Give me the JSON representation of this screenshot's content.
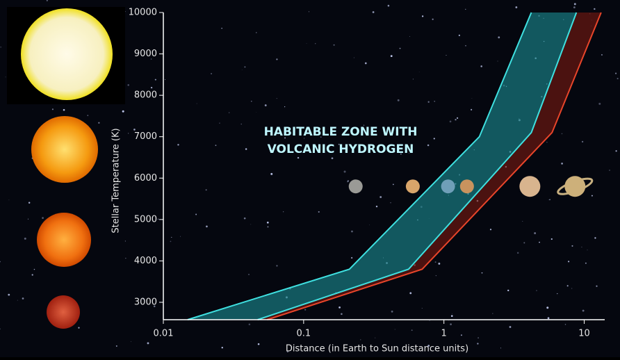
{
  "chart_data": {
    "type": "band",
    "annotation": [
      "HABITABLE ZONE WITH",
      "VOLCANIC HYDROGEN"
    ],
    "xlabel": "Distance (in Earth to Sun distance units)",
    "ylabel": "Stellar Temperature (K)",
    "log_x": true,
    "xlim": [
      0.01,
      14
    ],
    "ylim": [
      2580,
      10000
    ],
    "xticks": [
      0.01,
      0.1,
      1,
      10
    ],
    "yticks": [
      3000,
      4000,
      5000,
      6000,
      7000,
      8000,
      9000,
      10000
    ],
    "lines": [
      {
        "color": "#3fe0e0",
        "x": [
          0.0149,
          0.212,
          1.79,
          4.2
        ],
        "y": [
          2580,
          3800,
          7000,
          10000
        ]
      },
      {
        "color": "#3fe0e0",
        "x": [
          0.047,
          0.56,
          4.2,
          8.8
        ],
        "y": [
          2580,
          3800,
          7100,
          10000
        ]
      },
      {
        "color": "#e8452a",
        "x": [
          0.055,
          0.7,
          5.9,
          13.2
        ],
        "y": [
          2580,
          3800,
          7100,
          10000
        ]
      }
    ],
    "fill_colors": [
      "#1b8f95",
      "#7a1a10"
    ],
    "planets": {
      "x": [
        0.235,
        0.6,
        1.07,
        1.46,
        4.1,
        8.6
      ],
      "y": [
        5800,
        5800,
        5800,
        5800,
        5800,
        5800
      ],
      "colors": [
        "#9a9a96",
        "#d9a56a",
        "#6f9fb8",
        "#c9935e",
        "#d8b48e",
        "#cdb07a"
      ]
    }
  }
}
